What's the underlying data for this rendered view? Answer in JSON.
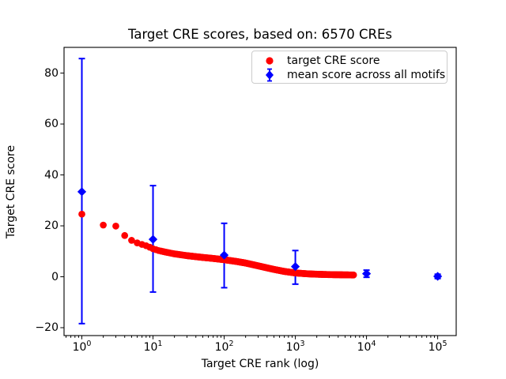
{
  "figure": {
    "kind": "matplotlib-scatter-figure"
  },
  "chart_data": {
    "type": "scatter",
    "title": "Target CRE scores, based on: 6570 CREs",
    "xlabel": "Target CRE rank (log)",
    "ylabel": "Target CRE score",
    "xscale": "log",
    "xlim": [
      0.562,
      182000
    ],
    "ylim": [
      -23.1,
      90.1
    ],
    "xticks": [
      1,
      10,
      100,
      1000,
      10000,
      100000
    ],
    "yticks": [
      -20,
      0,
      20,
      40,
      60,
      80
    ],
    "grid": false,
    "legend_position": "upper right",
    "n_cres": 6570,
    "series": [
      {
        "name": "target CRE score",
        "plot_type": "scatter",
        "marker": "circle",
        "color": "#ff0000",
        "n_points": 6570,
        "ranks_span": [
          1,
          6570
        ],
        "samples": [
          [
            1,
            24.6
          ],
          [
            2,
            20.3
          ],
          [
            3,
            19.9
          ],
          [
            4,
            16.2
          ],
          [
            5,
            14.3
          ],
          [
            6,
            13.3
          ],
          [
            7,
            12.7
          ],
          [
            8,
            12.2
          ],
          [
            9,
            11.6
          ],
          [
            10,
            11.0
          ],
          [
            12,
            10.3
          ],
          [
            15,
            9.7
          ],
          [
            20,
            9.0
          ],
          [
            30,
            8.3
          ],
          [
            40,
            7.9
          ],
          [
            50,
            7.6
          ],
          [
            70,
            7.2
          ],
          [
            100,
            6.7
          ],
          [
            150,
            6.0
          ],
          [
            200,
            5.4
          ],
          [
            300,
            4.3
          ],
          [
            400,
            3.5
          ],
          [
            500,
            2.9
          ],
          [
            700,
            2.1
          ],
          [
            1000,
            1.5
          ],
          [
            1500,
            1.15
          ],
          [
            2000,
            1.0
          ],
          [
            3000,
            0.85
          ],
          [
            4000,
            0.8
          ],
          [
            5000,
            0.75
          ],
          [
            6570,
            0.7
          ]
        ]
      },
      {
        "name": "mean score across all motifs",
        "plot_type": "errorbar",
        "marker": "diamond",
        "color": "#0000ff",
        "points": [
          {
            "x": 1,
            "y": 33.4,
            "ylo": -18.4,
            "yhi": 85.7
          },
          {
            "x": 10,
            "y": 14.7,
            "ylo": -6.0,
            "yhi": 35.8
          },
          {
            "x": 100,
            "y": 8.5,
            "ylo": -4.3,
            "yhi": 21.0
          },
          {
            "x": 1000,
            "y": 4.0,
            "ylo": -2.9,
            "yhi": 10.3
          },
          {
            "x": 10000,
            "y": 1.2,
            "ylo": -0.2,
            "yhi": 2.6
          },
          {
            "x": 100000,
            "y": 0.15,
            "ylo": -0.7,
            "yhi": 1.0
          }
        ]
      }
    ]
  },
  "legend": {
    "items": [
      {
        "label": "target CRE score",
        "marker": "circle",
        "color": "#ff0000"
      },
      {
        "label": "mean score across all motifs",
        "marker": "diamond-errorbar",
        "color": "#0000ff"
      }
    ]
  },
  "colors": {
    "red": "#ff0000",
    "blue": "#0000ff",
    "axis": "#000000",
    "legend_border": "#cccccc",
    "background": "#ffffff"
  }
}
